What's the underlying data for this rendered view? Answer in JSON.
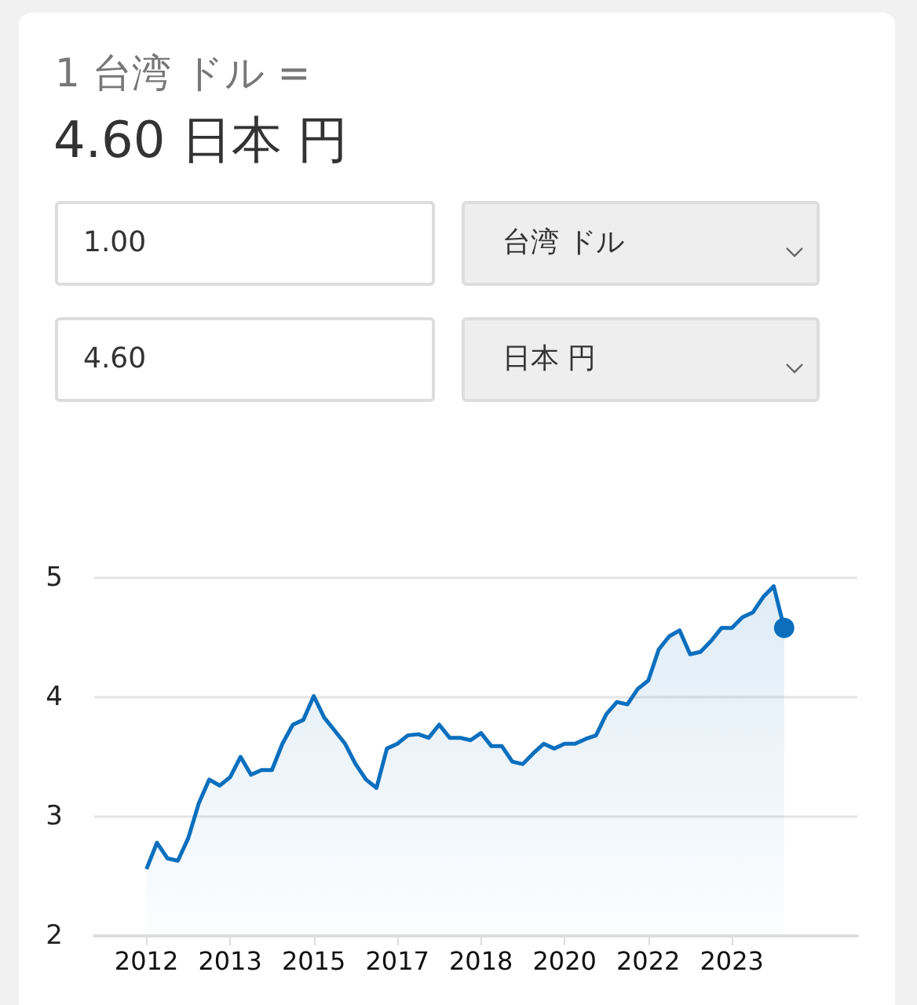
{
  "chart_data": {
    "type": "area",
    "title": "1 台湾 ドル =",
    "subtitle": "4.60 日本 円",
    "annotations": [
      "1.00",
      "台湾 ドル",
      "4.60",
      "日本 円"
    ],
    "categories": [
      "2012",
      null,
      null,
      null,
      null,
      null,
      null,
      null,
      "2013",
      null,
      null,
      null,
      null,
      null,
      null,
      null,
      "2015",
      null,
      null,
      null,
      null,
      null,
      null,
      null,
      "2017",
      null,
      null,
      null,
      null,
      null,
      null,
      null,
      "2018",
      null,
      null,
      null,
      null,
      null,
      null,
      null,
      "2020",
      null,
      null,
      null,
      null,
      null,
      null,
      null,
      "2022",
      null,
      null,
      null,
      null,
      null,
      null,
      null,
      "2023",
      null,
      null,
      null,
      null,
      null
    ],
    "series": [
      {
        "color": "#0b6fbe",
        "values": [
          2.56,
          2.78,
          2.65,
          2.63,
          2.82,
          3.11,
          3.31,
          3.26,
          3.33,
          3.5,
          3.35,
          3.39,
          3.39,
          3.61,
          3.77,
          3.81,
          4.01,
          3.83,
          3.72,
          3.61,
          3.44,
          3.31,
          3.24,
          3.57,
          3.61,
          3.68,
          3.69,
          3.66,
          3.77,
          3.66,
          3.66,
          3.64,
          3.7,
          3.59,
          3.59,
          3.46,
          3.44,
          3.53,
          3.61,
          3.57,
          3.61,
          3.61,
          3.65,
          3.68,
          3.86,
          3.96,
          3.94,
          4.07,
          4.14,
          4.4,
          4.51,
          4.56,
          4.36,
          4.38,
          4.47,
          4.58,
          4.58,
          4.67,
          4.71,
          4.84,
          4.93,
          4.58
        ]
      }
    ],
    "ylim": [
      2,
      5
    ],
    "yticks": [
      2,
      3,
      4,
      5
    ],
    "grid": "y"
  }
}
